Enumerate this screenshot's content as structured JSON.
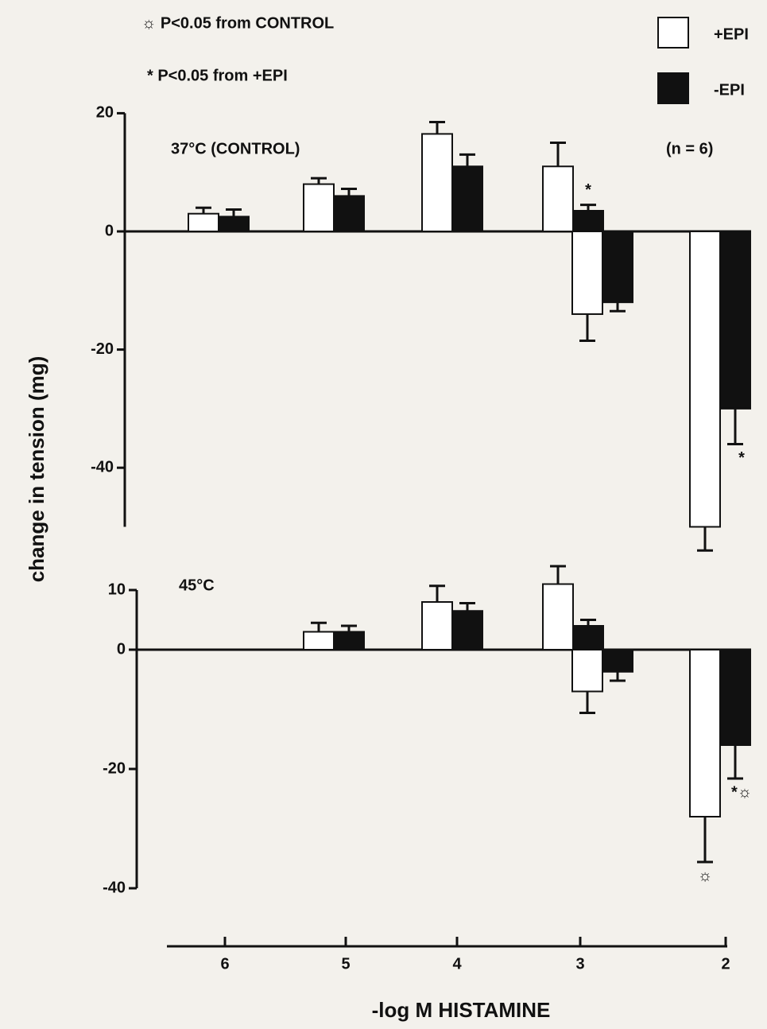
{
  "chart_data": [
    {
      "type": "bar",
      "ylabel": "change in tension (mg)",
      "notes": [
        "☼ P<0.05 from CONTROL",
        "* P<0.05 from +EPI"
      ],
      "annotations": [
        "37°C (CONTROL)",
        "(n = 6)"
      ],
      "ylim": [
        -50,
        20
      ],
      "yticks": [
        -40,
        -20,
        0,
        20
      ],
      "series": [
        {
          "name": "+EPI",
          "color": "#ffffff",
          "values": [
            3,
            8,
            16.5,
            11,
            -14,
            -50
          ],
          "errors": [
            1,
            1,
            2,
            4,
            4.5,
            4
          ],
          "markers": [
            null,
            null,
            null,
            null,
            null,
            null
          ]
        },
        {
          "name": "-EPI",
          "color": "#111111",
          "values": [
            2.5,
            6,
            11,
            3.5,
            -12,
            -30
          ],
          "errors": [
            1.2,
            1.2,
            2,
            1,
            1.5,
            6
          ],
          "markers": [
            null,
            null,
            null,
            "*",
            null,
            "*"
          ]
        }
      ]
    },
    {
      "type": "bar",
      "xlabel": "-log M  HISTAMINE",
      "categories": [
        "6",
        "5",
        "4",
        "3",
        null,
        "2"
      ],
      "annotations": [
        "45°C"
      ],
      "ylim": [
        -40,
        10
      ],
      "yticks": [
        -40,
        -20,
        0,
        10
      ],
      "series": [
        {
          "color": "#ffffff",
          "values": [
            null,
            3,
            8,
            11,
            -7,
            -28
          ],
          "errors": [
            null,
            1.5,
            2.7,
            3,
            3.6,
            7.6
          ],
          "markers": [
            null,
            null,
            null,
            null,
            null,
            "☼"
          ]
        },
        {
          "color": "#111111",
          "values": [
            null,
            3,
            6.5,
            4,
            -3.7,
            -16
          ],
          "errors": [
            null,
            1,
            1.3,
            1,
            1.5,
            5.6
          ],
          "markers": [
            null,
            null,
            null,
            null,
            null,
            "*☼"
          ]
        }
      ]
    }
  ]
}
